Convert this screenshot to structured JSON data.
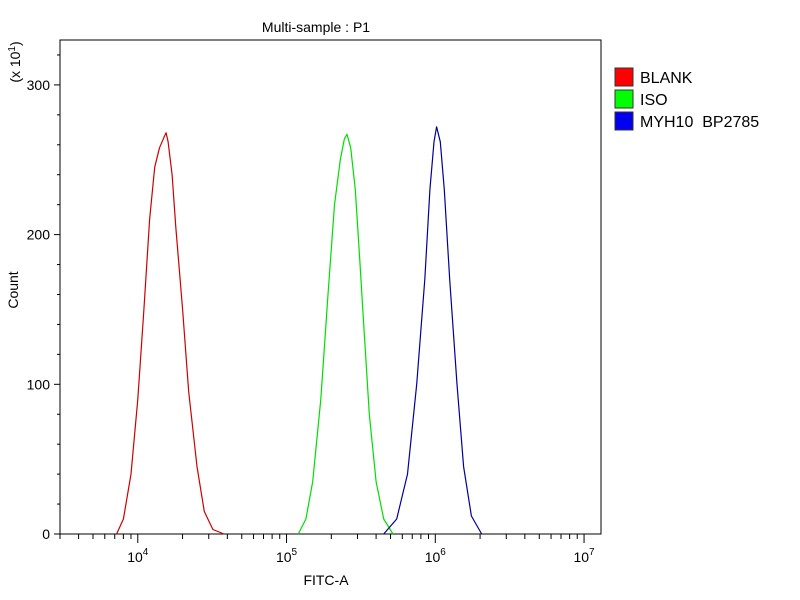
{
  "chart_data": {
    "type": "line",
    "title": "Multi-sample : P1",
    "xlabel": "FITC-A",
    "ylabel": "Count",
    "y_multiplier": {
      "base": "(x 10",
      "exp": "1",
      "close": ")"
    },
    "x_scale": "log",
    "xlim": [
      3000,
      13000000
    ],
    "ylim": [
      0,
      330
    ],
    "x_ticks": [
      {
        "value": 10000,
        "base": "10",
        "exp": "4"
      },
      {
        "value": 100000,
        "base": "10",
        "exp": "5"
      },
      {
        "value": 1000000,
        "base": "10",
        "exp": "6"
      },
      {
        "value": 10000000,
        "base": "10",
        "exp": "7"
      }
    ],
    "y_ticks": [
      {
        "value": 0,
        "label": "0"
      },
      {
        "value": 100,
        "label": "100"
      },
      {
        "value": 200,
        "label": "200"
      },
      {
        "value": 300,
        "label": "300"
      }
    ],
    "grid": false,
    "legend_position": "right",
    "series": [
      {
        "name": "BLANK",
        "color": "#cc0000",
        "swatch": "#ff0000",
        "x": [
          7200,
          8000,
          9000,
          10000,
          11000,
          12000,
          13000,
          14000,
          15000,
          15500,
          16000,
          17000,
          18000,
          20000,
          22000,
          25000,
          28000,
          32000,
          38000
        ],
        "y": [
          0,
          10,
          40,
          90,
          150,
          210,
          245,
          258,
          265,
          268,
          262,
          240,
          205,
          150,
          95,
          45,
          15,
          3,
          0
        ]
      },
      {
        "name": "ISO",
        "color": "#00dd00",
        "swatch": "#00ff00",
        "x": [
          120000,
          135000,
          150000,
          170000,
          190000,
          210000,
          230000,
          245000,
          255000,
          270000,
          290000,
          310000,
          330000,
          360000,
          400000,
          450000,
          520000
        ],
        "y": [
          0,
          10,
          35,
          90,
          160,
          220,
          250,
          264,
          267,
          258,
          230,
          185,
          140,
          80,
          35,
          10,
          0
        ]
      },
      {
        "name": "MYH10  BP2785",
        "color": "#000099",
        "swatch": "#0000ee",
        "x": [
          450000,
          550000,
          650000,
          750000,
          850000,
          920000,
          980000,
          1020000,
          1080000,
          1150000,
          1250000,
          1400000,
          1550000,
          1750000,
          2050000
        ],
        "y": [
          0,
          10,
          40,
          100,
          170,
          230,
          262,
          272,
          262,
          230,
          170,
          100,
          45,
          12,
          0
        ]
      }
    ]
  }
}
